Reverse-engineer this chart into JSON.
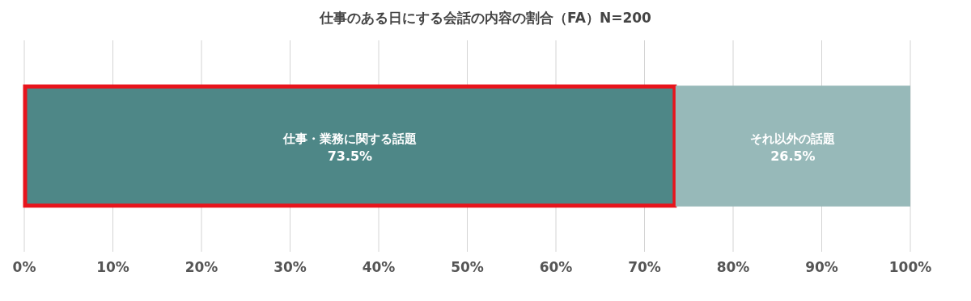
{
  "chart_data": {
    "type": "bar",
    "orientation": "horizontal",
    "stacked": true,
    "title": "仕事のある日にする会話の内容の割合（FA）N=200",
    "categories": [
      null
    ],
    "series": [
      {
        "name": "仕事・業務に関する話題",
        "color": "#4e8787",
        "values": [
          73.5
        ],
        "value_labels": [
          "73.5%"
        ]
      },
      {
        "name": "それ以外の話題",
        "color": "#97b9b9",
        "values": [
          26.5
        ],
        "value_labels": [
          "26.5%"
        ]
      }
    ],
    "xlim": [
      0,
      100
    ],
    "xticks": [
      {
        "value": 0,
        "label": "0%"
      },
      {
        "value": 10,
        "label": "10%"
      },
      {
        "value": 20,
        "label": "20%"
      },
      {
        "value": 30,
        "label": "30%"
      },
      {
        "value": 40,
        "label": "40%"
      },
      {
        "value": 50,
        "label": "50%"
      },
      {
        "value": 60,
        "label": "60%"
      },
      {
        "value": 70,
        "label": "70%"
      },
      {
        "value": 80,
        "label": "80%"
      },
      {
        "value": 90,
        "label": "90%"
      },
      {
        "value": 100,
        "label": "100%"
      }
    ],
    "grid": "x",
    "tick_labels": "x"
  }
}
